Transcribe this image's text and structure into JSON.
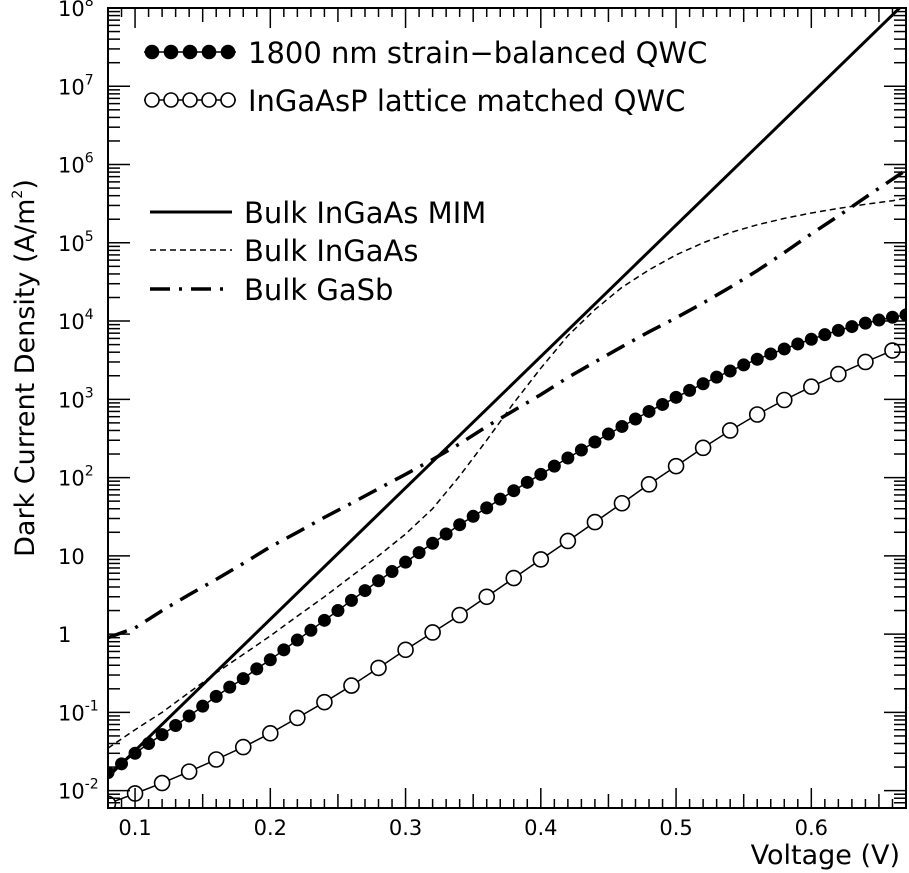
{
  "chart_data": {
    "type": "line",
    "title": "",
    "xlabel": "Voltage (V)",
    "ylabel": "Dark Current Density (A/m",
    "ylabel_sup": "2",
    "ylabel_tail": ")",
    "xlim": [
      0.08,
      0.67
    ],
    "ylim": [
      0.006,
      100000000
    ],
    "yscale": "log",
    "grid": false,
    "legend_position": "top-left",
    "x_ticks": [
      {
        "value": 0.1,
        "label": "0.1"
      },
      {
        "value": 0.2,
        "label": "0.2"
      },
      {
        "value": 0.3,
        "label": "0.3"
      },
      {
        "value": 0.4,
        "label": "0.4"
      },
      {
        "value": 0.5,
        "label": "0.5"
      },
      {
        "value": 0.6,
        "label": "0.6"
      }
    ],
    "y_ticks": [
      {
        "value": 0.01,
        "base": "10",
        "exp": "-2"
      },
      {
        "value": 0.1,
        "base": "10",
        "exp": "-1"
      },
      {
        "value": 1,
        "base": "1",
        "exp": ""
      },
      {
        "value": 10,
        "base": "10",
        "exp": ""
      },
      {
        "value": 100,
        "base": "10",
        "exp": "2"
      },
      {
        "value": 1000,
        "base": "10",
        "exp": "3"
      },
      {
        "value": 10000,
        "base": "10",
        "exp": "4"
      },
      {
        "value": 100000,
        "base": "10",
        "exp": "5"
      },
      {
        "value": 1000000,
        "base": "10",
        "exp": "6"
      },
      {
        "value": 10000000,
        "base": "10",
        "exp": "7"
      },
      {
        "value": 100000000,
        "base": "10",
        "exp": "8"
      }
    ],
    "series": [
      {
        "name": "1800 nm strain−balanced QWC",
        "style": "filled-circles-line",
        "x": [
          0.08,
          0.09,
          0.1,
          0.11,
          0.12,
          0.13,
          0.14,
          0.15,
          0.16,
          0.17,
          0.18,
          0.19,
          0.2,
          0.21,
          0.22,
          0.23,
          0.24,
          0.25,
          0.26,
          0.27,
          0.28,
          0.29,
          0.3,
          0.31,
          0.32,
          0.33,
          0.34,
          0.35,
          0.36,
          0.37,
          0.38,
          0.39,
          0.4,
          0.41,
          0.42,
          0.43,
          0.44,
          0.45,
          0.46,
          0.47,
          0.48,
          0.49,
          0.5,
          0.51,
          0.52,
          0.53,
          0.54,
          0.55,
          0.56,
          0.57,
          0.58,
          0.59,
          0.6,
          0.61,
          0.62,
          0.63,
          0.64,
          0.65,
          0.66,
          0.67
        ],
        "y": [
          0.017,
          0.022,
          0.03,
          0.04,
          0.052,
          0.068,
          0.09,
          0.12,
          0.16,
          0.21,
          0.27,
          0.36,
          0.47,
          0.63,
          0.84,
          1.12,
          1.5,
          2.0,
          2.7,
          3.6,
          4.8,
          6.3,
          8.3,
          11,
          14.5,
          19,
          25,
          32,
          41,
          53,
          68,
          87,
          110,
          140,
          178,
          225,
          285,
          360,
          450,
          560,
          700,
          860,
          1060,
          1300,
          1580,
          1920,
          2300,
          2750,
          3250,
          3800,
          4400,
          5100,
          5850,
          6700,
          7600,
          8500,
          9400,
          10300,
          11200,
          12000
        ]
      },
      {
        "name": "InGaAsP lattice matched QWC",
        "style": "open-circles-line",
        "x": [
          0.08,
          0.1,
          0.12,
          0.14,
          0.16,
          0.18,
          0.2,
          0.22,
          0.24,
          0.26,
          0.28,
          0.3,
          0.32,
          0.34,
          0.36,
          0.38,
          0.4,
          0.42,
          0.44,
          0.46,
          0.48,
          0.5,
          0.52,
          0.54,
          0.56,
          0.58,
          0.6,
          0.62,
          0.64,
          0.66
        ],
        "y": [
          0.0068,
          0.0092,
          0.0125,
          0.0175,
          0.025,
          0.036,
          0.054,
          0.085,
          0.135,
          0.22,
          0.37,
          0.63,
          1.05,
          1.75,
          3.0,
          5.2,
          9.0,
          15.5,
          27,
          47,
          82,
          140,
          240,
          400,
          640,
          980,
          1450,
          2100,
          3000,
          4200
        ]
      },
      {
        "name": "Bulk InGaAs MIM",
        "style": "solid",
        "x": [
          0.08,
          0.67
        ],
        "y": [
          0.015,
          120000000
        ]
      },
      {
        "name": "Bulk InGaAs",
        "style": "dashed",
        "x": [
          0.08,
          0.1,
          0.12,
          0.14,
          0.16,
          0.18,
          0.2,
          0.22,
          0.24,
          0.26,
          0.28,
          0.3,
          0.32,
          0.34,
          0.36,
          0.38,
          0.4,
          0.42,
          0.44,
          0.46,
          0.48,
          0.5,
          0.52,
          0.54,
          0.56,
          0.58,
          0.6,
          0.62,
          0.64,
          0.66,
          0.67
        ],
        "y": [
          0.035,
          0.06,
          0.1,
          0.18,
          0.32,
          0.55,
          0.95,
          1.7,
          3.0,
          5.5,
          10,
          19,
          40,
          105,
          300,
          900,
          2500,
          6500,
          14000,
          27000,
          45000,
          70000,
          100000,
          135000,
          170000,
          205000,
          240000,
          275000,
          310000,
          345000,
          370000
        ]
      },
      {
        "name": "Bulk GaSb",
        "style": "dash-dot",
        "x": [
          0.08,
          0.1,
          0.12,
          0.14,
          0.16,
          0.18,
          0.2,
          0.22,
          0.24,
          0.26,
          0.28,
          0.3,
          0.32,
          0.34,
          0.36,
          0.38,
          0.4,
          0.42,
          0.44,
          0.46,
          0.48,
          0.5,
          0.52,
          0.54,
          0.56,
          0.58,
          0.6,
          0.62,
          0.64,
          0.66,
          0.67
        ],
        "y": [
          0.9,
          1.2,
          2.0,
          3.2,
          5.0,
          8.0,
          13,
          20,
          31,
          47,
          72,
          110,
          170,
          270,
          450,
          720,
          1150,
          1900,
          3000,
          4700,
          7300,
          11000,
          17000,
          27000,
          44000,
          75000,
          130000,
          220000,
          380000,
          650000,
          850000
        ]
      }
    ]
  }
}
